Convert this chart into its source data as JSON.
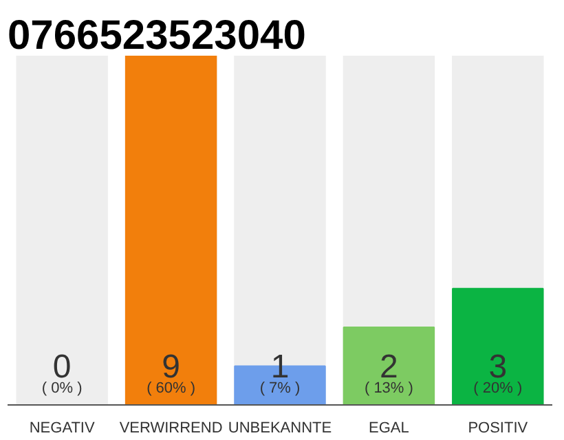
{
  "chart_data": {
    "type": "bar",
    "title": "0766523523040",
    "categories": [
      "NEGATIV",
      "VERWIRREND",
      "UNBEKANNTE",
      "EGAL",
      "POSITIV"
    ],
    "values": [
      0,
      9,
      1,
      2,
      3
    ],
    "colors": [
      "#9e9e9e",
      "#f27f0c",
      "#6d9eeb",
      "#7dcb62",
      "#0bb443"
    ],
    "data_labels": true,
    "annotations": [
      "( 0% )",
      "( 60% )",
      "( 7% )",
      "( 13% )",
      "( 20% )"
    ]
  }
}
